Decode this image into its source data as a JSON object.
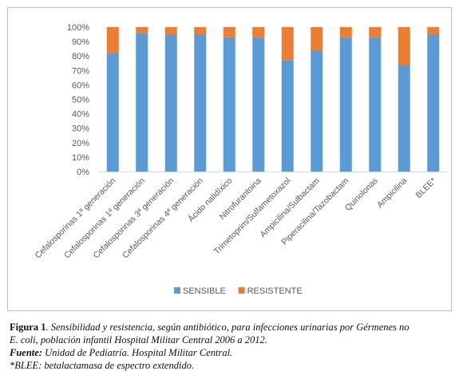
{
  "chart_data": {
    "type": "bar",
    "stacked": true,
    "percent": true,
    "categories": [
      "Cefalosporinas 1ª generación",
      "Cefalosporinas 1ª generación",
      "Cefalosporinas 3ª generación",
      "Cefalosporinas 4ª generación",
      "Ácido nalidíxico",
      "Nitrofurantoina",
      "Trimetoprim/Sulfametoxazol",
      "Ampicilina/Sulbactam",
      "Piperacilina/Tazobactam",
      "Quinolonas",
      "Ampicilina",
      "BLEE*"
    ],
    "series": [
      {
        "name": "SENSIBLE",
        "color": "#5B9BD5",
        "values": [
          82,
          96,
          95,
          95,
          93,
          93,
          77,
          84,
          93,
          93,
          74,
          95
        ]
      },
      {
        "name": "RESISTENTE",
        "color": "#ED7D31",
        "values": [
          18,
          4,
          5,
          5,
          7,
          7,
          23,
          16,
          7,
          7,
          26,
          5
        ]
      }
    ],
    "y_ticks": [
      "0%",
      "10%",
      "20%",
      "30%",
      "40%",
      "50%",
      "60%",
      "70%",
      "80%",
      "90%",
      "100%"
    ],
    "ylim": [
      0,
      100
    ],
    "grid": false,
    "legend_position": "bottom"
  },
  "caption": {
    "label": "Figura 1",
    "line1": ". Sensibilidad y resistencia, según antibiótico, para infecciones urinarias por Gérmenes no",
    "line2": "E. coli, población infantil Hospital Militar Central 2006 a 2012.",
    "source_label": "Fuente:",
    "source_text": " Unidad de Pediatría. Hospital Militar Central.",
    "note": "*BLEE: betalactamasa de espectro extendido."
  }
}
